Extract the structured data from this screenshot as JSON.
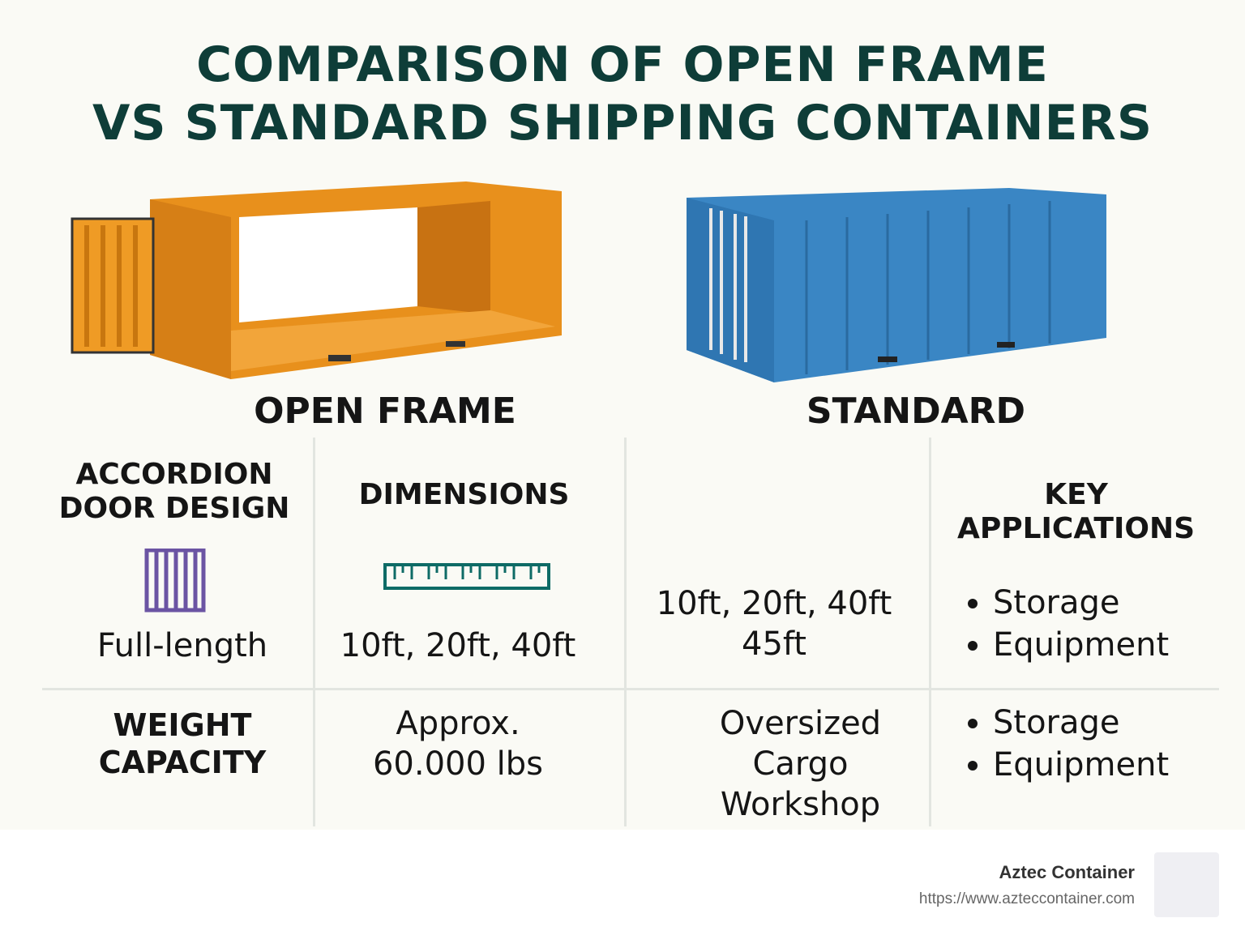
{
  "title": {
    "line1": "COMPARISON OF OPEN FRAME",
    "line2": "VS STANDARD SHIPPING CONTAINERS"
  },
  "containers": {
    "open_frame": {
      "label": "OPEN FRAME",
      "color": "#f0a02a"
    },
    "standard": {
      "label": "STANDARD",
      "color": "#3a86c4"
    }
  },
  "table": {
    "row1": {
      "col1_header": [
        "ACCORDION",
        "DOOR DESIGN"
      ],
      "col1_value": "Full-length",
      "col2_header": "DIMENSIONS",
      "col2_value": "10ft, 20ft, 40ft",
      "col3_value": [
        "10ft, 20ft, 40ft",
        "45ft"
      ],
      "col4_header": [
        "KEY",
        "APPLICATIONS"
      ],
      "col4_items": [
        "Storage",
        "Equipment"
      ]
    },
    "row2": {
      "col1_header": [
        "WEIGHT",
        "CAPACITY"
      ],
      "col2_value": [
        "Approx.",
        "60.000 lbs"
      ],
      "col3_value": [
        "Oversized",
        "Cargo",
        "Workshop"
      ],
      "col4_items": [
        "Storage",
        "Equipment"
      ]
    }
  },
  "icons": {
    "door": "accordion-door-icon",
    "ruler": "ruler-icon",
    "door_color": "#6b54a3",
    "ruler_color": "#0e6b66"
  },
  "footer": {
    "brand": "Aztec Container",
    "url": "https://www.azteccontainer.com"
  }
}
